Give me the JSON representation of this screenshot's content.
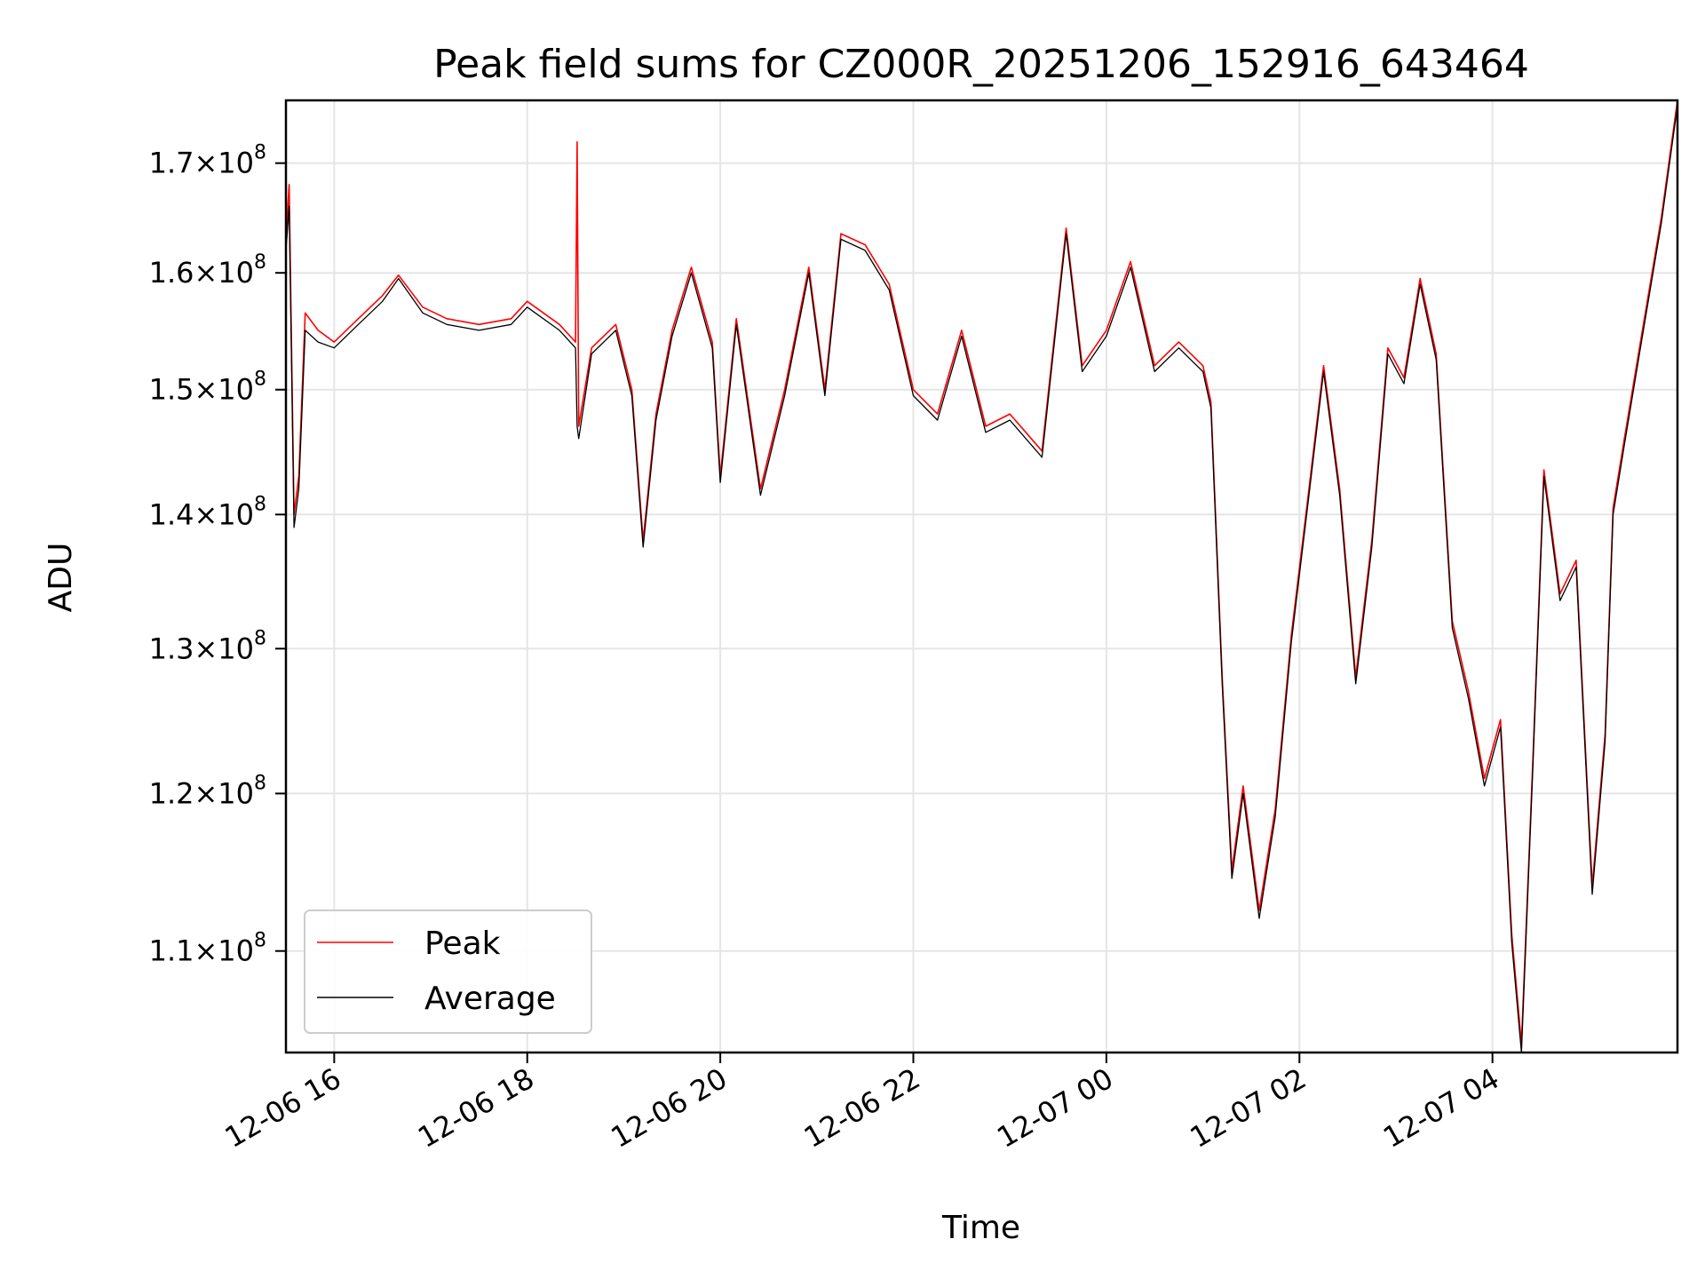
{
  "chart_data": {
    "type": "line",
    "title": "Peak field sums for CZ000R_20251206_152916_643464",
    "xlabel": "Time",
    "ylabel": "ADU",
    "y_scale": "log",
    "ylim": [
      104000000,
      176000000
    ],
    "xlim": [
      "2025-12-06 15:30",
      "2025-12-07 05:55"
    ],
    "grid": true,
    "legend_position": "lower-left",
    "x_ticks": [
      {
        "time": "2025-12-06 16:00",
        "label": "12-06 16"
      },
      {
        "time": "2025-12-06 18:00",
        "label": "12-06 18"
      },
      {
        "time": "2025-12-06 20:00",
        "label": "12-06 20"
      },
      {
        "time": "2025-12-06 22:00",
        "label": "12-06 22"
      },
      {
        "time": "2025-12-07 00:00",
        "label": "12-07 00"
      },
      {
        "time": "2025-12-07 02:00",
        "label": "12-07 02"
      },
      {
        "time": "2025-12-07 04:00",
        "label": "12-07 04"
      }
    ],
    "y_ticks": [
      {
        "value": 110000000,
        "mantissa": "1.1",
        "exp": "8"
      },
      {
        "value": 120000000,
        "mantissa": "1.2",
        "exp": "8"
      },
      {
        "value": 130000000,
        "mantissa": "1.3",
        "exp": "8"
      },
      {
        "value": 140000000,
        "mantissa": "1.4",
        "exp": "8"
      },
      {
        "value": 150000000,
        "mantissa": "1.5",
        "exp": "8"
      },
      {
        "value": 160000000,
        "mantissa": "1.6",
        "exp": "8"
      },
      {
        "value": 170000000,
        "mantissa": "1.7",
        "exp": "8"
      }
    ],
    "series": [
      {
        "name": "Peak",
        "color": "#ff0000",
        "points": [
          [
            "2025-12-06 15:30",
            163000000
          ],
          [
            "2025-12-06 15:32",
            168000000
          ],
          [
            "2025-12-06 15:35",
            140000000
          ],
          [
            "2025-12-06 15:38",
            143000000
          ],
          [
            "2025-12-06 15:42",
            156500000
          ],
          [
            "2025-12-06 15:50",
            155000000
          ],
          [
            "2025-12-06 16:00",
            154000000
          ],
          [
            "2025-12-06 16:15",
            156000000
          ],
          [
            "2025-12-06 16:30",
            158000000
          ],
          [
            "2025-12-06 16:40",
            159800000
          ],
          [
            "2025-12-06 16:55",
            157000000
          ],
          [
            "2025-12-06 17:10",
            156000000
          ],
          [
            "2025-12-06 17:30",
            155500000
          ],
          [
            "2025-12-06 17:50",
            156000000
          ],
          [
            "2025-12-06 18:00",
            157500000
          ],
          [
            "2025-12-06 18:20",
            155500000
          ],
          [
            "2025-12-06 18:30",
            154000000
          ],
          [
            "2025-12-06 18:31",
            172000000
          ],
          [
            "2025-12-06 18:32",
            147000000
          ],
          [
            "2025-12-06 18:40",
            153500000
          ],
          [
            "2025-12-06 18:55",
            155500000
          ],
          [
            "2025-12-06 19:05",
            150000000
          ],
          [
            "2025-12-06 19:12",
            138000000
          ],
          [
            "2025-12-06 19:20",
            148000000
          ],
          [
            "2025-12-06 19:30",
            155000000
          ],
          [
            "2025-12-06 19:42",
            160500000
          ],
          [
            "2025-12-06 19:55",
            154000000
          ],
          [
            "2025-12-06 20:00",
            143000000
          ],
          [
            "2025-12-06 20:10",
            156000000
          ],
          [
            "2025-12-06 20:25",
            142000000
          ],
          [
            "2025-12-06 20:40",
            150000000
          ],
          [
            "2025-12-06 20:55",
            160500000
          ],
          [
            "2025-12-06 21:05",
            150000000
          ],
          [
            "2025-12-06 21:15",
            163500000
          ],
          [
            "2025-12-06 21:30",
            162500000
          ],
          [
            "2025-12-06 21:45",
            159000000
          ],
          [
            "2025-12-06 22:00",
            150000000
          ],
          [
            "2025-12-06 22:15",
            148000000
          ],
          [
            "2025-12-06 22:30",
            155000000
          ],
          [
            "2025-12-06 22:45",
            147000000
          ],
          [
            "2025-12-06 23:00",
            148000000
          ],
          [
            "2025-12-06 23:20",
            145000000
          ],
          [
            "2025-12-06 23:35",
            164000000
          ],
          [
            "2025-12-06 23:45",
            152000000
          ],
          [
            "2025-12-07 00:00",
            155000000
          ],
          [
            "2025-12-07 00:15",
            161000000
          ],
          [
            "2025-12-07 00:30",
            152000000
          ],
          [
            "2025-12-07 00:45",
            154000000
          ],
          [
            "2025-12-07 01:00",
            152000000
          ],
          [
            "2025-12-07 01:05",
            149000000
          ],
          [
            "2025-12-07 01:12",
            128000000
          ],
          [
            "2025-12-07 01:18",
            115000000
          ],
          [
            "2025-12-07 01:25",
            120500000
          ],
          [
            "2025-12-07 01:35",
            112500000
          ],
          [
            "2025-12-07 01:45",
            119000000
          ],
          [
            "2025-12-07 01:55",
            131000000
          ],
          [
            "2025-12-07 02:05",
            141000000
          ],
          [
            "2025-12-07 02:15",
            152000000
          ],
          [
            "2025-12-07 02:25",
            142000000
          ],
          [
            "2025-12-07 02:35",
            128000000
          ],
          [
            "2025-12-07 02:45",
            138000000
          ],
          [
            "2025-12-07 02:55",
            153500000
          ],
          [
            "2025-12-07 03:05",
            151000000
          ],
          [
            "2025-12-07 03:15",
            159500000
          ],
          [
            "2025-12-07 03:25",
            153000000
          ],
          [
            "2025-12-07 03:35",
            132000000
          ],
          [
            "2025-12-07 03:45",
            127000000
          ],
          [
            "2025-12-07 03:55",
            121000000
          ],
          [
            "2025-12-07 04:05",
            125000000
          ],
          [
            "2025-12-07 04:12",
            111000000
          ],
          [
            "2025-12-07 04:18",
            104500000
          ],
          [
            "2025-12-07 04:25",
            122000000
          ],
          [
            "2025-12-07 04:32",
            143500000
          ],
          [
            "2025-12-07 04:42",
            134000000
          ],
          [
            "2025-12-07 04:52",
            136500000
          ],
          [
            "2025-12-07 05:02",
            114000000
          ],
          [
            "2025-12-07 05:10",
            124000000
          ],
          [
            "2025-12-07 05:15",
            140500000
          ],
          [
            "2025-12-07 05:22",
            146000000
          ],
          [
            "2025-12-07 05:32",
            154000000
          ],
          [
            "2025-12-07 05:45",
            165000000
          ],
          [
            "2025-12-07 05:55",
            176000000
          ]
        ]
      },
      {
        "name": "Average",
        "color": "#000000",
        "points": [
          [
            "2025-12-06 15:30",
            162000000
          ],
          [
            "2025-12-06 15:32",
            166000000
          ],
          [
            "2025-12-06 15:35",
            139000000
          ],
          [
            "2025-12-06 15:38",
            142000000
          ],
          [
            "2025-12-06 15:42",
            155000000
          ],
          [
            "2025-12-06 15:50",
            154000000
          ],
          [
            "2025-12-06 16:00",
            153500000
          ],
          [
            "2025-12-06 16:15",
            155500000
          ],
          [
            "2025-12-06 16:30",
            157500000
          ],
          [
            "2025-12-06 16:40",
            159500000
          ],
          [
            "2025-12-06 16:55",
            156500000
          ],
          [
            "2025-12-06 17:10",
            155500000
          ],
          [
            "2025-12-06 17:30",
            155000000
          ],
          [
            "2025-12-06 17:50",
            155500000
          ],
          [
            "2025-12-06 18:00",
            157000000
          ],
          [
            "2025-12-06 18:20",
            155000000
          ],
          [
            "2025-12-06 18:30",
            153500000
          ],
          [
            "2025-12-06 18:31",
            147000000
          ],
          [
            "2025-12-06 18:32",
            146000000
          ],
          [
            "2025-12-06 18:40",
            153000000
          ],
          [
            "2025-12-06 18:55",
            155000000
          ],
          [
            "2025-12-06 19:05",
            149500000
          ],
          [
            "2025-12-06 19:12",
            137500000
          ],
          [
            "2025-12-06 19:20",
            147500000
          ],
          [
            "2025-12-06 19:30",
            154500000
          ],
          [
            "2025-12-06 19:42",
            160000000
          ],
          [
            "2025-12-06 19:55",
            153500000
          ],
          [
            "2025-12-06 20:00",
            142500000
          ],
          [
            "2025-12-06 20:10",
            155500000
          ],
          [
            "2025-12-06 20:25",
            141500000
          ],
          [
            "2025-12-06 20:40",
            149500000
          ],
          [
            "2025-12-06 20:55",
            160000000
          ],
          [
            "2025-12-06 21:05",
            149500000
          ],
          [
            "2025-12-06 21:15",
            163000000
          ],
          [
            "2025-12-06 21:30",
            162000000
          ],
          [
            "2025-12-06 21:45",
            158500000
          ],
          [
            "2025-12-06 22:00",
            149500000
          ],
          [
            "2025-12-06 22:15",
            147500000
          ],
          [
            "2025-12-06 22:30",
            154500000
          ],
          [
            "2025-12-06 22:45",
            146500000
          ],
          [
            "2025-12-06 23:00",
            147500000
          ],
          [
            "2025-12-06 23:20",
            144500000
          ],
          [
            "2025-12-06 23:35",
            163500000
          ],
          [
            "2025-12-06 23:45",
            151500000
          ],
          [
            "2025-12-07 00:00",
            154500000
          ],
          [
            "2025-12-07 00:15",
            160500000
          ],
          [
            "2025-12-07 00:30",
            151500000
          ],
          [
            "2025-12-07 00:45",
            153500000
          ],
          [
            "2025-12-07 01:00",
            151500000
          ],
          [
            "2025-12-07 01:05",
            148500000
          ],
          [
            "2025-12-07 01:12",
            127500000
          ],
          [
            "2025-12-07 01:18",
            114500000
          ],
          [
            "2025-12-07 01:25",
            120000000
          ],
          [
            "2025-12-07 01:35",
            112000000
          ],
          [
            "2025-12-07 01:45",
            118500000
          ],
          [
            "2025-12-07 01:55",
            130500000
          ],
          [
            "2025-12-07 02:05",
            140500000
          ],
          [
            "2025-12-07 02:15",
            151500000
          ],
          [
            "2025-12-07 02:25",
            141500000
          ],
          [
            "2025-12-07 02:35",
            127500000
          ],
          [
            "2025-12-07 02:45",
            137500000
          ],
          [
            "2025-12-07 02:55",
            153000000
          ],
          [
            "2025-12-07 03:05",
            150500000
          ],
          [
            "2025-12-07 03:15",
            159000000
          ],
          [
            "2025-12-07 03:25",
            152500000
          ],
          [
            "2025-12-07 03:35",
            131500000
          ],
          [
            "2025-12-07 03:45",
            126500000
          ],
          [
            "2025-12-07 03:55",
            120500000
          ],
          [
            "2025-12-07 04:05",
            124500000
          ],
          [
            "2025-12-07 04:12",
            110500000
          ],
          [
            "2025-12-07 04:18",
            104000000
          ],
          [
            "2025-12-07 04:25",
            121500000
          ],
          [
            "2025-12-07 04:32",
            143000000
          ],
          [
            "2025-12-07 04:42",
            133500000
          ],
          [
            "2025-12-07 04:52",
            136000000
          ],
          [
            "2025-12-07 05:02",
            113500000
          ],
          [
            "2025-12-07 05:10",
            123500000
          ],
          [
            "2025-12-07 05:15",
            140000000
          ],
          [
            "2025-12-07 05:22",
            145500000
          ],
          [
            "2025-12-07 05:32",
            153500000
          ],
          [
            "2025-12-07 05:45",
            164500000
          ],
          [
            "2025-12-07 05:55",
            175500000
          ]
        ]
      }
    ]
  }
}
